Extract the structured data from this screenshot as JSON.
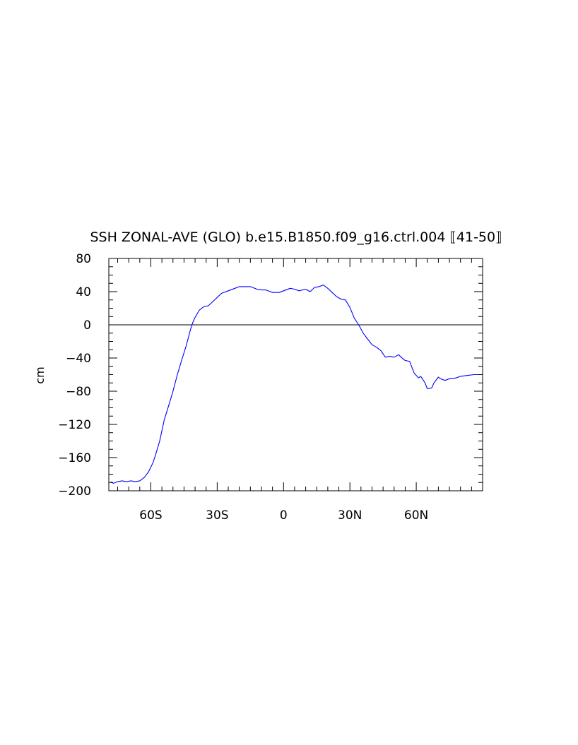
{
  "chart_data": {
    "type": "line",
    "title": "SSH ZONAL-AVE (GLO) b.e15.B1850.f09_g16.ctrl.004 ⟦41-50⟧",
    "xlabel": "",
    "ylabel": "cm",
    "xlim": [
      -79,
      90
    ],
    "ylim": [
      -200,
      80
    ],
    "x_ticks": [
      {
        "value": -60,
        "label": "60S"
      },
      {
        "value": -30,
        "label": "30S"
      },
      {
        "value": 0,
        "label": "0"
      },
      {
        "value": 30,
        "label": "30N"
      },
      {
        "value": 60,
        "label": "60N"
      }
    ],
    "y_ticks": [
      {
        "value": 80,
        "label": "80"
      },
      {
        "value": 40,
        "label": "40"
      },
      {
        "value": 0,
        "label": "0"
      },
      {
        "value": -40,
        "label": "−40"
      },
      {
        "value": -80,
        "label": "−80"
      },
      {
        "value": -120,
        "label": "−120"
      },
      {
        "value": -160,
        "label": "−160"
      },
      {
        "value": -200,
        "label": "−200"
      }
    ],
    "zero_line": true,
    "grid": false,
    "series": [
      {
        "color": "#0000ff",
        "x": [
          -78,
          -77,
          -75,
          -73,
          -71,
          -69,
          -67,
          -65,
          -63,
          -61,
          -59,
          -58,
          -56,
          -54,
          -52,
          -50,
          -48,
          -46,
          -44,
          -42,
          -41,
          -40,
          -38,
          -36,
          -34,
          -32,
          -30,
          -28,
          -25,
          -22,
          -20,
          -18,
          -15,
          -12,
          -10,
          -8,
          -5,
          -2,
          0,
          3,
          5,
          7,
          10,
          12,
          14,
          16,
          17,
          18,
          20,
          22,
          24,
          26,
          28,
          30,
          32,
          34,
          36,
          38,
          40,
          42,
          44,
          46,
          48,
          50,
          52,
          54,
          55,
          57,
          59,
          61,
          62,
          64,
          65,
          67,
          68,
          70,
          71,
          73,
          75,
          78,
          80,
          83,
          86,
          89
        ],
        "y": [
          -189,
          -191,
          -189,
          -188,
          -189,
          -188,
          -189,
          -188,
          -184,
          -177,
          -166,
          -158,
          -140,
          -115,
          -98,
          -80,
          -60,
          -42,
          -25,
          -5,
          3,
          9,
          18,
          22,
          23,
          28,
          33,
          38,
          41,
          44,
          46,
          46,
          46,
          43,
          42,
          42,
          39,
          39,
          41,
          44,
          43,
          41,
          43,
          40,
          45,
          46,
          47,
          48,
          44,
          39,
          34,
          31,
          30,
          21,
          8,
          0,
          -10,
          -17,
          -24,
          -27,
          -31,
          -39,
          -38,
          -39,
          -36,
          -41,
          -43,
          -44,
          -58,
          -64,
          -62,
          -70,
          -77,
          -76,
          -70,
          -63,
          -65,
          -67,
          -65,
          -64,
          -62,
          -61,
          -60,
          -60
        ]
      }
    ]
  }
}
